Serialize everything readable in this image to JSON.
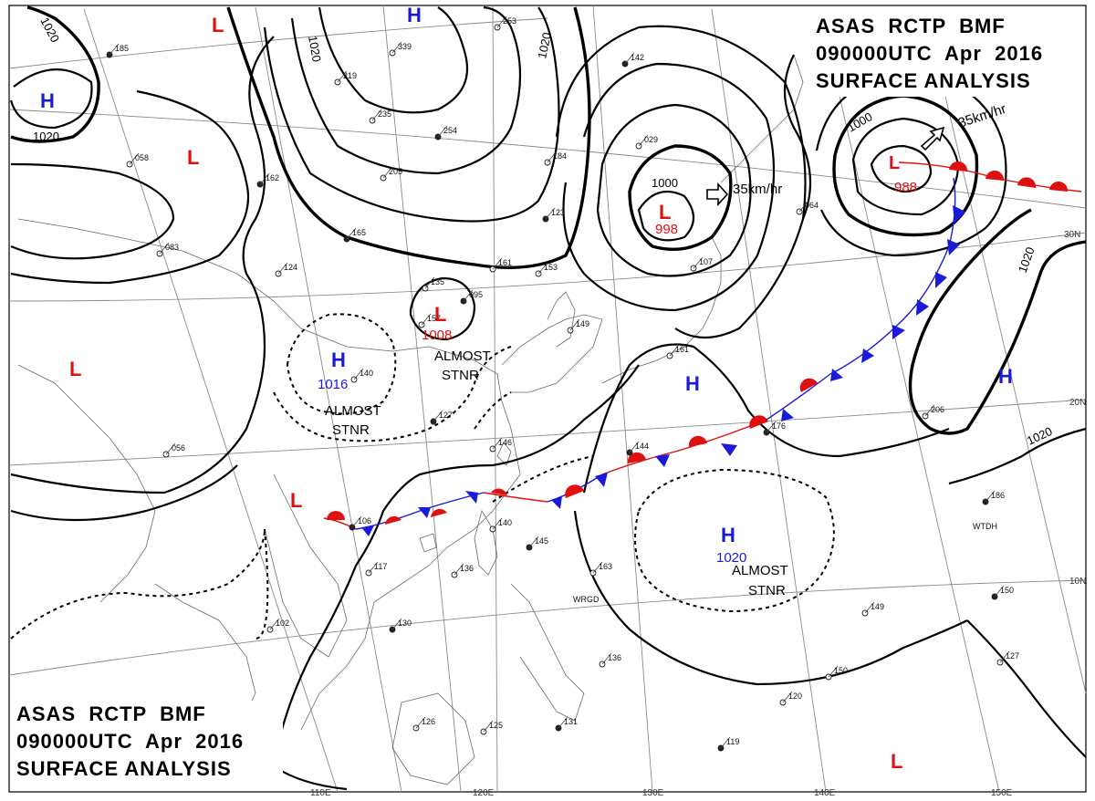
{
  "header_top": {
    "line1": "ASAS  RCTP  BMF",
    "line2": "090000UTC  Apr  2016",
    "line3": "SURFACE ANALYSIS"
  },
  "header_bottom": {
    "line1": "ASAS  RCTP  BMF",
    "line2": "090000UTC  Apr  2016",
    "line3": "SURFACE ANALYSIS"
  },
  "lat_labels": [
    "30N",
    "20N",
    "10N"
  ],
  "lon_labels": [
    "110E",
    "120E",
    "130E",
    "140E",
    "150E"
  ],
  "isobar_labels": [
    "1020",
    "1020",
    "1020",
    "1020",
    "1000",
    "1000",
    "1020"
  ],
  "pressure_centers": [
    {
      "type": "H",
      "color": "blue",
      "value": ""
    },
    {
      "type": "H",
      "color": "blue",
      "value": ""
    },
    {
      "type": "H",
      "color": "blue",
      "value": "1016"
    },
    {
      "type": "H",
      "color": "blue",
      "value": ""
    },
    {
      "type": "H",
      "color": "blue",
      "value": ""
    },
    {
      "type": "H",
      "color": "blue",
      "value": "1020"
    },
    {
      "type": "L",
      "color": "red",
      "value": ""
    },
    {
      "type": "L",
      "color": "red",
      "value": ""
    },
    {
      "type": "L",
      "color": "red",
      "value": ""
    },
    {
      "type": "L",
      "color": "red",
      "value": "1008"
    },
    {
      "type": "L",
      "color": "red",
      "value": "998"
    },
    {
      "type": "L",
      "color": "red",
      "value": "988"
    },
    {
      "type": "L",
      "color": "red",
      "value": ""
    },
    {
      "type": "L",
      "color": "red",
      "value": ""
    }
  ],
  "notes": [
    {
      "line1": "ALMOST",
      "line2": "STNR"
    },
    {
      "line1": "ALMOST",
      "line2": "STNR"
    },
    {
      "line1": "ALMOST",
      "line2": "STNR"
    }
  ],
  "motions": [
    "35km/hr",
    "35km/hr"
  ],
  "stations": [
    "185",
    "339",
    "253",
    "142",
    "219",
    "235",
    "254",
    "184",
    "029",
    "162",
    "205",
    "135",
    "095",
    "157",
    "140",
    "127",
    "146",
    "149",
    "144",
    "153",
    "161",
    "165",
    "083",
    "124",
    "123",
    "058",
    "056",
    "106",
    "117",
    "102",
    "130",
    "136",
    "140",
    "145",
    "163",
    "136",
    "150",
    "149",
    "120",
    "119",
    "126",
    "125",
    "131",
    "064",
    "206",
    "186",
    "150",
    "127",
    "176",
    "161",
    "107"
  ],
  "station_codes": [
    "WTDH",
    "WRGD"
  ]
}
